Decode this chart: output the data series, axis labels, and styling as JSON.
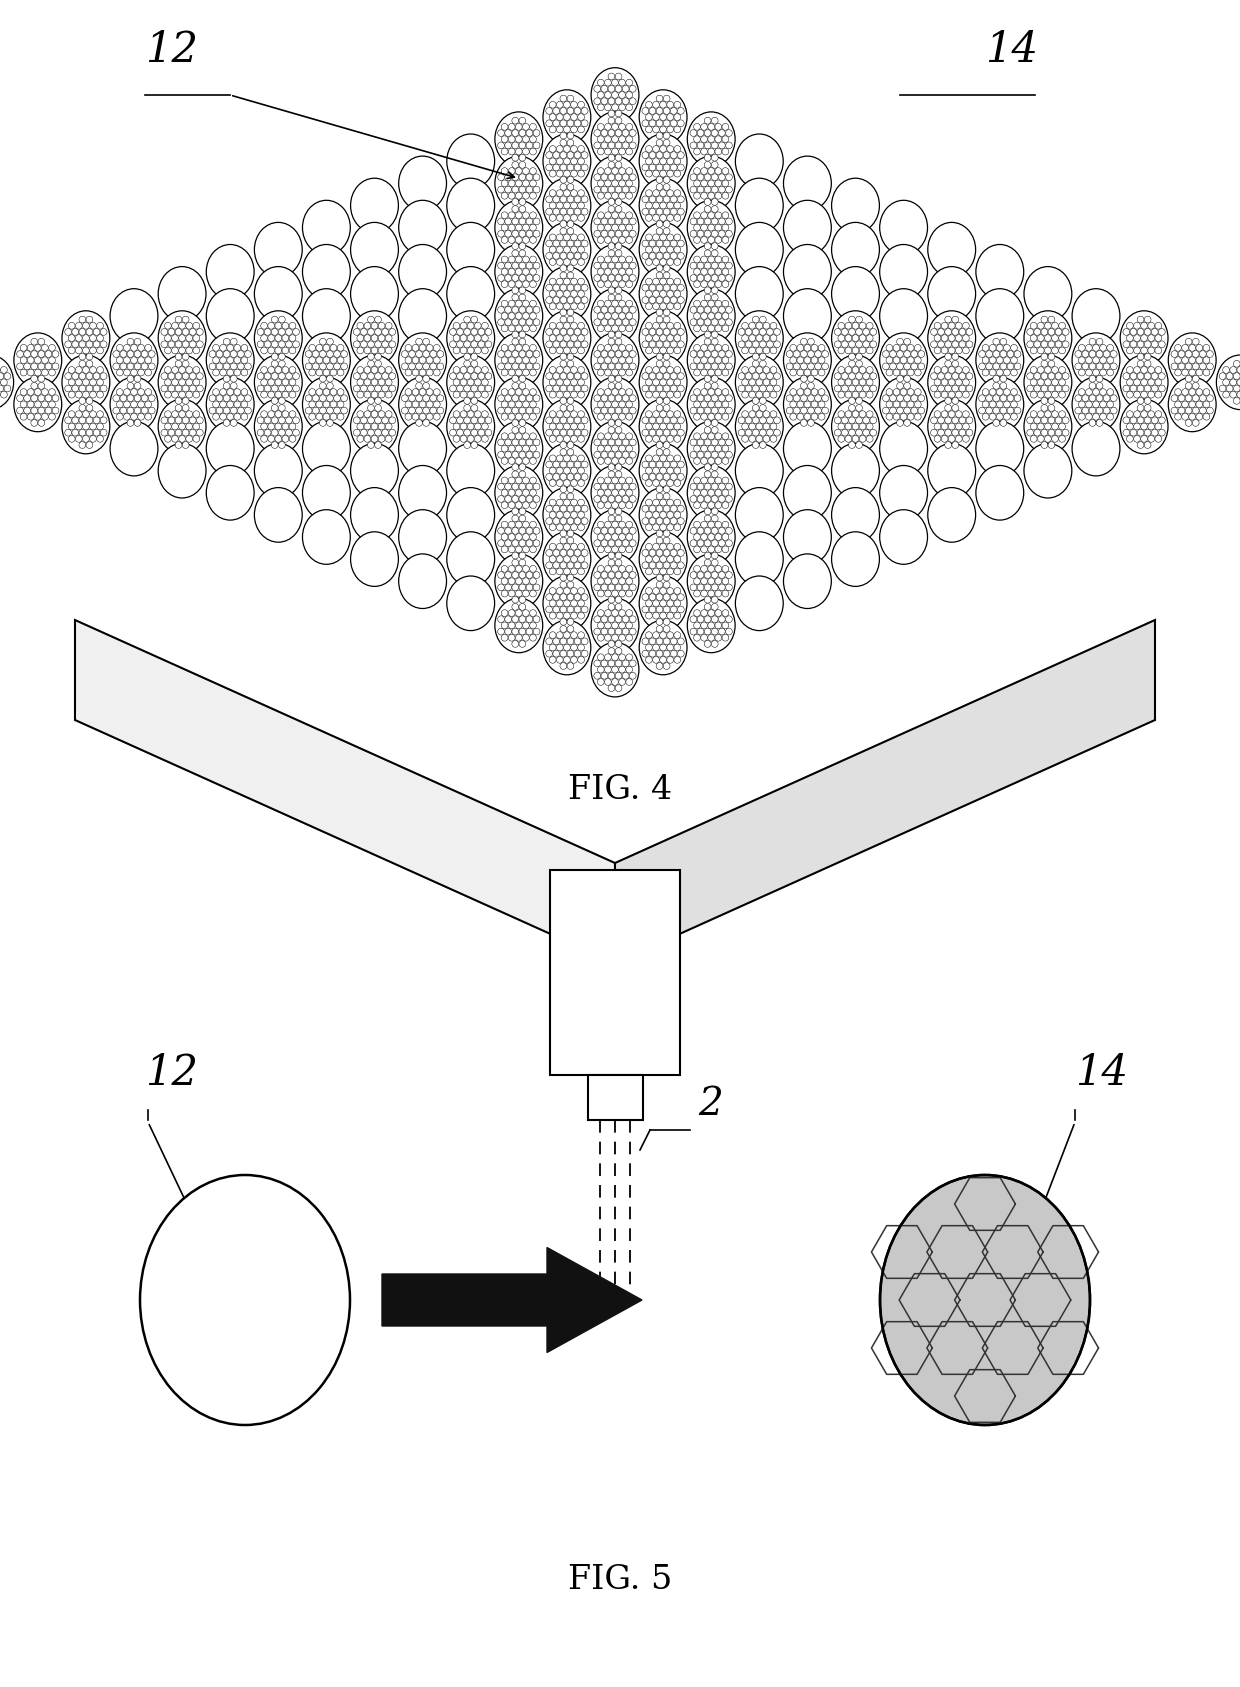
{
  "fig4_label": "FIG. 4",
  "fig5_label": "FIG. 5",
  "label_12": "12",
  "label_14": "14",
  "label_2": "2",
  "bg_color": "#ffffff",
  "line_color": "#000000",
  "sphere_color_plain": "#ffffff",
  "sphere_color_graphene": "#ffffff",
  "graphene_fill": "#aaaaaa",
  "substrate_left": "#f0f0f0",
  "substrate_right": "#e0e0e0"
}
